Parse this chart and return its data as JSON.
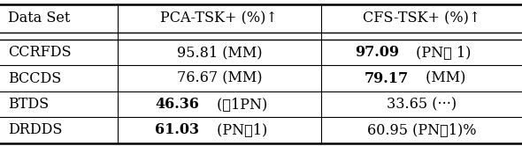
{
  "header": [
    "Data Set",
    "PCA-TSK+ (%)↑",
    "CFS-TSK+ (%)↑"
  ],
  "rows": [
    [
      "CCRFDS",
      "95.81 (MM)",
      "97.09 (PNℓ 1)"
    ],
    [
      "BCCDS",
      "76.67 (MM)",
      "79.17 (MM)"
    ],
    [
      "BTDS",
      "46.36 (ℓ1PN)",
      "33.65 (···)"
    ],
    [
      "DRDDS",
      "61.03 (PNℓ1)",
      "60.95 (PNℓ1)%"
    ]
  ],
  "bold_num": {
    "0_2": "97.09",
    "1_2": "79.17",
    "2_1": "46.36",
    "3_1": "61.03"
  },
  "bold_suffix": {
    "0_2": " (PNℓ 1)",
    "1_2": " (MM)",
    "2_1": " (ℓ1PN)",
    "3_1": " (PNℓ1)"
  },
  "normal_suffix_only": {
    "3_2": ""
  },
  "col_boundaries": [
    0.0,
    0.225,
    0.615,
    1.0
  ],
  "background_color": "#ffffff",
  "line_color": "#000000",
  "font_size": 11.5,
  "figwidth": 5.9,
  "figheight": 1.66,
  "dpi": 100
}
